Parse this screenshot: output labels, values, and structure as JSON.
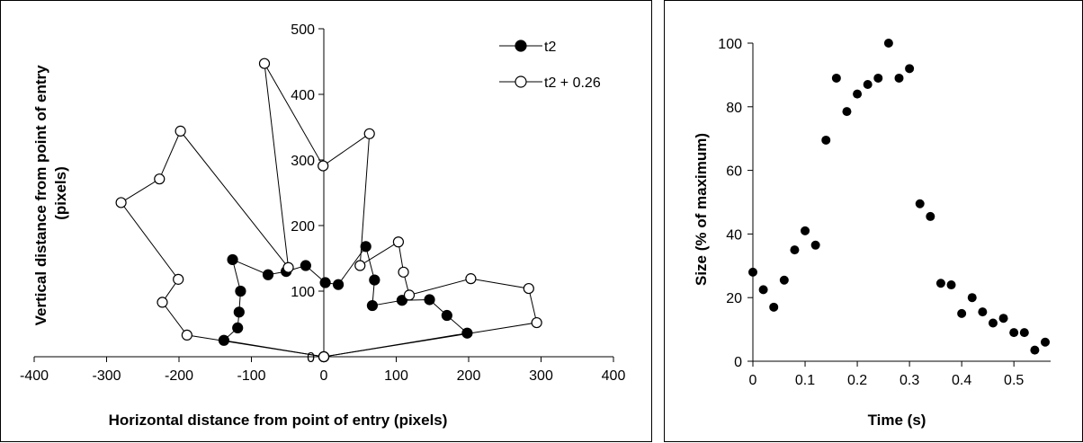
{
  "chart_data": [
    {
      "type": "line",
      "xlabel": "Horizontal distance from point of entry (pixels)",
      "ylabel": "Vertical distance from point of entry (pixels)",
      "xlim": [
        -400,
        400
      ],
      "ylim": [
        0,
        500
      ],
      "xticks": [
        -400,
        -300,
        -200,
        -100,
        0,
        100,
        200,
        300,
        400
      ],
      "yticks": [
        0,
        100,
        200,
        300,
        400,
        500
      ],
      "grid": false,
      "legend_position": "top-right",
      "series": [
        {
          "name": "t2",
          "marker": "filled-circle",
          "color": "#000000",
          "points": [
            [
              0,
              0
            ],
            [
              -138,
              25
            ],
            [
              -119,
              44
            ],
            [
              -117,
              68
            ],
            [
              -115,
              100
            ],
            [
              -126,
              148
            ],
            [
              -77,
              125
            ],
            [
              -52,
              130
            ],
            [
              -25,
              139
            ],
            [
              2,
              113
            ],
            [
              20,
              110
            ],
            [
              58,
              168
            ],
            [
              70,
              117
            ],
            [
              67,
              78
            ],
            [
              108,
              86
            ],
            [
              146,
              87
            ],
            [
              170,
              63
            ],
            [
              198,
              36
            ],
            [
              0,
              0
            ]
          ]
        },
        {
          "name": "t2 + 0.26",
          "marker": "open-circle",
          "color": "#000000",
          "points": [
            [
              0,
              0
            ],
            [
              -189,
              33
            ],
            [
              -223,
              83
            ],
            [
              -201,
              118
            ],
            [
              -280,
              235
            ],
            [
              -227,
              271
            ],
            [
              -198,
              344
            ],
            [
              -49,
              136
            ],
            [
              -82,
              447
            ],
            [
              -1,
              291
            ],
            [
              63,
              340
            ],
            [
              50,
              139
            ],
            [
              103,
              175
            ],
            [
              110,
              129
            ],
            [
              118,
              94
            ],
            [
              203,
              119
            ],
            [
              283,
              104
            ],
            [
              294,
              52
            ],
            [
              0,
              0
            ]
          ]
        }
      ]
    },
    {
      "type": "scatter",
      "xlabel": "Time (s)",
      "ylabel": "Size (% of maximum)",
      "xlim": [
        0,
        0.56
      ],
      "ylim": [
        0,
        100
      ],
      "xticks": [
        "0",
        "0.1",
        "0.2",
        "0.3",
        "0.4",
        "0.5"
      ],
      "xtick_values": [
        0,
        0.1,
        0.2,
        0.3,
        0.4,
        0.5
      ],
      "yticks": [
        0,
        20,
        40,
        60,
        80,
        100
      ],
      "grid": false,
      "series": [
        {
          "marker": "filled-circle",
          "color": "#000000",
          "x": [
            0.0,
            0.02,
            0.04,
            0.06,
            0.08,
            0.1,
            0.12,
            0.14,
            0.16,
            0.18,
            0.2,
            0.22,
            0.24,
            0.26,
            0.28,
            0.3,
            0.32,
            0.34,
            0.36,
            0.38,
            0.4,
            0.42,
            0.44,
            0.46,
            0.48,
            0.5,
            0.52,
            0.54,
            0.56
          ],
          "y": [
            28,
            22.5,
            17,
            25.5,
            35,
            41,
            36.5,
            69.5,
            89,
            78.5,
            84,
            87,
            89,
            100,
            89,
            92,
            49.5,
            45.5,
            24.5,
            24,
            15,
            20,
            15.5,
            12,
            13.5,
            9,
            9,
            3.5,
            6
          ]
        }
      ]
    }
  ]
}
